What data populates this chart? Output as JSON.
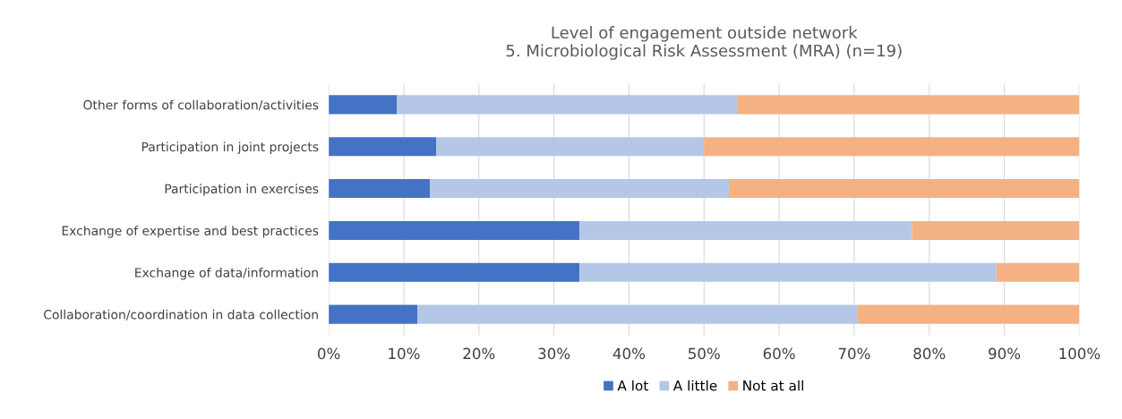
{
  "chart_data": {
    "type": "bar",
    "orientation": "horizontal",
    "stacked": true,
    "title": "Level of engagement outside network\n5. Microbiological Risk Assessment (MRA) (n=19)",
    "categories": [
      "Other forms of collaboration/activities",
      "Participation in joint projects",
      "Participation in exercises",
      "Exchange of expertise and best practices",
      "Exchange of data/information",
      "Collaboration/coordination in data collection"
    ],
    "series": [
      {
        "name": "A lot",
        "color": "#4472c4",
        "values": [
          9.1,
          14.3,
          13.5,
          33.4,
          33.4,
          11.8
        ]
      },
      {
        "name": "A little",
        "color": "#b4c7e7",
        "values": [
          45.4,
          35.7,
          39.8,
          44.3,
          55.5,
          58.7
        ]
      },
      {
        "name": "Not at all",
        "color": "#f4b183",
        "values": [
          45.5,
          50.0,
          46.7,
          22.3,
          11.1,
          29.5
        ]
      }
    ],
    "xlim": [
      0,
      100
    ],
    "xticks": [
      {
        "value": 0,
        "label": "0%"
      },
      {
        "value": 10,
        "label": "10%"
      },
      {
        "value": 20,
        "label": "20%"
      },
      {
        "value": 30,
        "label": "30%"
      },
      {
        "value": 40,
        "label": "40%"
      },
      {
        "value": 50,
        "label": "50%"
      },
      {
        "value": 60,
        "label": "60%"
      },
      {
        "value": 70,
        "label": "70%"
      },
      {
        "value": 80,
        "label": "80%"
      },
      {
        "value": 90,
        "label": "90%"
      },
      {
        "value": 100,
        "label": "100%"
      }
    ],
    "grid": "x",
    "legend": "bottom"
  }
}
